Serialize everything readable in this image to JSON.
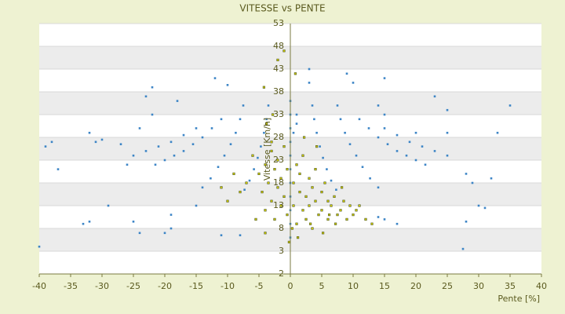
{
  "chart_data": {
    "type": "scatter",
    "title": "VITESSE vs PENTE",
    "x_label": "Pente [%]",
    "y_label": "Vitesse [Km/h]",
    "xlim": [
      -40,
      40
    ],
    "xticks": [
      -40,
      -35,
      -30,
      -25,
      -20,
      -15,
      -10,
      -5,
      0,
      5,
      10,
      15,
      20,
      25,
      30,
      35,
      40
    ],
    "ylim": [
      -2,
      53
    ],
    "yticks": [
      -2,
      3,
      8,
      13,
      18,
      23,
      28,
      33,
      38,
      43,
      48,
      53
    ],
    "grid": true,
    "series": [
      {
        "color": "#3d85c6",
        "x": [
          3.5,
          3.8,
          4.2,
          4.7,
          5.2,
          5.8,
          6.5,
          7.3,
          7.5,
          8,
          8.7,
          9.5,
          10.5,
          11.5,
          12.7,
          14,
          11,
          12.5,
          14,
          15.5,
          17,
          18.5,
          20,
          21.5,
          15,
          17,
          19,
          21,
          23,
          25,
          -3.5,
          -3.8,
          -4.2,
          -4.7,
          -5.2,
          -5.8,
          -6.5,
          -7.3,
          -7.5,
          -8,
          -8.7,
          -9.5,
          -10.5,
          -11.5,
          -12.7,
          -14,
          -11,
          -12.5,
          -14,
          -15.5,
          -17,
          -18.5,
          -20,
          -21.5,
          -15,
          -17,
          -19,
          -21,
          -23,
          -25,
          -39,
          -38,
          -37,
          -32,
          -31,
          -30,
          -27,
          -26,
          -24,
          -23,
          -22,
          -22,
          -18,
          -12,
          -10,
          -33,
          -32,
          -29,
          -25,
          -24,
          -20,
          -19,
          -19,
          -15,
          -11,
          -8,
          -40,
          3,
          3,
          9,
          10,
          15,
          14,
          15,
          20,
          23,
          25,
          25,
          33,
          35,
          28,
          29,
          28,
          27.5,
          30,
          31,
          32,
          17,
          15,
          14,
          1,
          1,
          0.5,
          0,
          0,
          0,
          0,
          0,
          0,
          0,
          0,
          0,
          0,
          0
        ],
        "values": [
          35,
          32,
          29,
          26,
          23.5,
          21,
          18.5,
          16.5,
          35,
          32,
          29,
          26.5,
          24,
          21.5,
          19,
          17,
          32,
          30,
          28,
          26.5,
          25,
          24,
          23,
          22,
          30,
          28.5,
          27,
          26,
          25,
          24,
          35,
          32,
          29,
          26,
          23.5,
          21,
          18.5,
          16.5,
          35,
          32,
          29,
          26.5,
          24,
          21.5,
          19,
          17,
          32,
          30,
          28,
          26.5,
          25,
          24,
          23,
          22,
          30,
          28.5,
          27,
          26,
          25,
          24,
          26,
          27,
          21,
          29,
          27,
          27.5,
          26.5,
          22,
          30,
          37,
          39,
          33,
          36,
          41,
          39.5,
          9,
          9.5,
          13,
          9.5,
          7,
          7,
          8,
          11,
          13,
          6.5,
          6.5,
          4,
          43,
          40,
          42,
          40,
          41,
          35,
          33,
          29,
          37,
          34,
          29,
          29,
          35,
          20,
          18,
          9.5,
          3.5,
          13,
          12.5,
          19,
          9,
          10,
          10.5,
          33,
          31,
          29,
          36,
          33,
          30,
          27,
          24,
          21,
          18,
          15,
          12,
          9,
          6
        ]
      },
      {
        "color": "#c8c400",
        "x": [
          -5,
          -4.5,
          -4,
          -4,
          -3.5,
          -3,
          -3,
          -2.5,
          -2.5,
          -2,
          -2,
          -1.5,
          -1.5,
          -1,
          -1,
          -0.5,
          -0.5,
          0.5,
          0.5,
          1,
          1,
          1.5,
          1.5,
          2,
          2,
          2.5,
          2.5,
          3,
          3,
          3.5,
          3.5,
          4,
          4,
          4.5,
          5,
          5,
          5.5,
          6,
          6,
          6.5,
          7,
          7.5,
          8,
          8.5,
          9,
          9.5,
          10,
          10.5,
          11,
          -6,
          -5.5,
          -7,
          -8,
          -9,
          -10,
          -11,
          -4,
          -3,
          -2,
          -1,
          0.3,
          1.2,
          2.2,
          3.2,
          4.2,
          5.2,
          6.2,
          7.2,
          8.2,
          12,
          13,
          -3.8,
          -2.8,
          -4.2,
          -0.2,
          0.8
        ],
        "values": [
          20,
          16,
          22,
          12,
          18,
          25,
          14,
          21,
          10,
          17,
          23,
          13,
          19,
          15,
          26,
          11,
          21,
          18,
          13,
          22,
          9,
          16,
          20,
          12,
          24,
          15,
          10,
          19,
          13,
          17,
          8,
          14,
          21,
          11,
          16,
          12,
          18,
          10,
          14,
          13,
          15,
          11,
          12,
          14,
          10,
          13,
          11,
          12,
          13,
          24,
          10,
          18,
          16,
          20,
          14,
          17,
          7,
          27,
          45,
          47,
          8,
          6,
          28,
          9,
          26,
          7,
          11,
          9,
          17,
          10,
          9,
          31,
          33,
          39,
          5,
          42
        ]
      }
    ]
  }
}
